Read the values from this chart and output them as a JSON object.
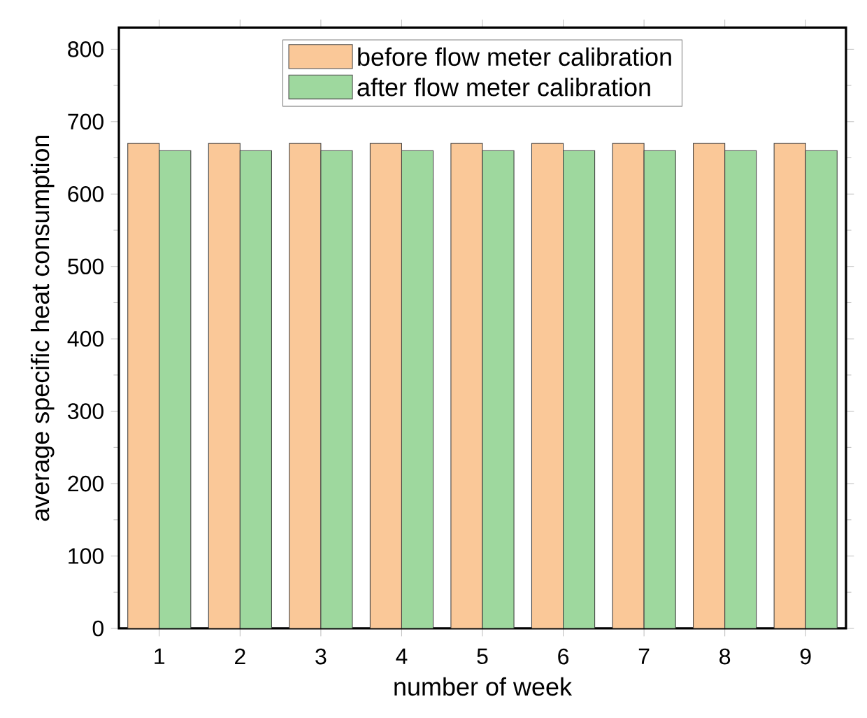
{
  "chart_data": {
    "type": "bar",
    "xlabel": "number of week",
    "ylabel": "average specific heat consumption",
    "categories": [
      "1",
      "2",
      "3",
      "4",
      "5",
      "6",
      "7",
      "8",
      "9"
    ],
    "series": [
      {
        "name": "before flow meter calibration",
        "color": "#fac898",
        "values": [
          670,
          670,
          670,
          670,
          670,
          670,
          670,
          670,
          670
        ]
      },
      {
        "name": "after flow meter calibration",
        "color": "#9ed89e",
        "values": [
          660,
          660,
          660,
          660,
          660,
          660,
          660,
          660,
          660
        ]
      }
    ],
    "ylim": [
      0,
      830
    ],
    "yticks": [
      0,
      100,
      200,
      300,
      400,
      500,
      600,
      700,
      800
    ],
    "legend": "top",
    "grid": false
  }
}
